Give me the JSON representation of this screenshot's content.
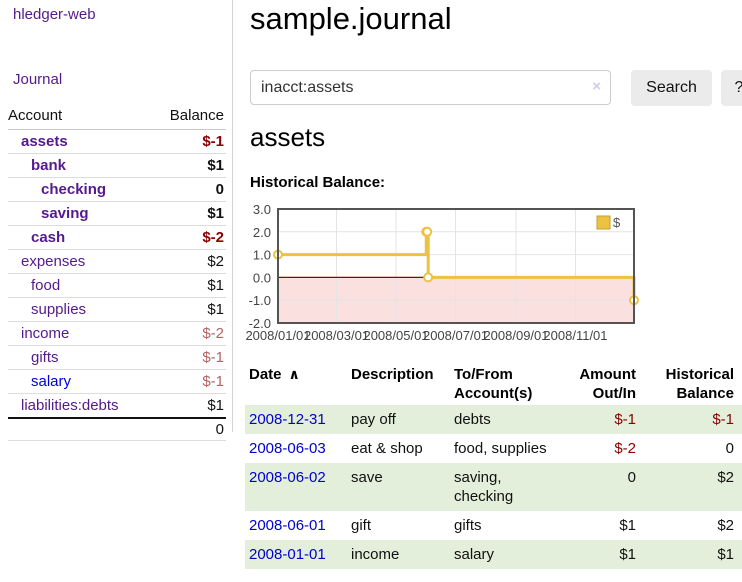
{
  "colors": {
    "link_purple": "#551a8b",
    "link_blue": "#0000dd",
    "negative_strong": "#8b0000",
    "negative_soft": "#b06464",
    "row_green": "#e3efdb",
    "series_gold": "#edc240",
    "chart_negative_region": "#fbe0e0",
    "zero_line": "#8b0000"
  },
  "sidebar": {
    "brand": "hledger-web",
    "nav_journal": "Journal",
    "accounts": {
      "header_account": "Account",
      "header_balance": "Balance",
      "rows": [
        {
          "name": "assets",
          "balance": "$-1",
          "indent": 1,
          "in_query": true
        },
        {
          "name": "bank",
          "balance": "$1",
          "indent": 2,
          "in_query": true
        },
        {
          "name": "checking",
          "balance": "0",
          "indent": 3,
          "in_query": true
        },
        {
          "name": "saving",
          "balance": "$1",
          "indent": 3,
          "in_query": true
        },
        {
          "name": "cash",
          "balance": "$-2",
          "indent": 2,
          "in_query": true
        },
        {
          "name": "expenses",
          "balance": "$2",
          "indent": 1,
          "in_query": false
        },
        {
          "name": "food",
          "balance": "$1",
          "indent": 2,
          "in_query": false
        },
        {
          "name": "supplies",
          "balance": "$1",
          "indent": 2,
          "in_query": false
        },
        {
          "name": "income",
          "balance": "$-2",
          "indent": 1,
          "in_query": false
        },
        {
          "name": "gifts",
          "balance": "$-1",
          "indent": 2,
          "in_query": false
        },
        {
          "name": "salary",
          "balance": "$-1",
          "indent": 2,
          "in_query": false,
          "link_color": "blue"
        },
        {
          "name": "liabilities:debts",
          "balance": "$1",
          "indent": 1,
          "in_query": false
        }
      ],
      "total": "0"
    }
  },
  "header": {
    "title": "sample.journal"
  },
  "search": {
    "value": "inacct:assets",
    "clear_icon": "×",
    "search_button": "Search",
    "help_button": "?"
  },
  "account_page": {
    "heading": "assets",
    "chart_title": "Historical Balance:"
  },
  "chart_data": {
    "type": "line",
    "step": true,
    "title": "Historical Balance:",
    "legend_label": "$",
    "legend_position": "top-right",
    "x_range": [
      "2008-01-01",
      "2008-12-31"
    ],
    "ylim": [
      -2,
      3
    ],
    "yticks": [
      "3.0",
      "2.0",
      "1.0",
      "0.0",
      "-1.0",
      "-2.0"
    ],
    "xticks": [
      "2008/01/01",
      "2008/03/01",
      "2008/05/01",
      "2008/07/01",
      "2008/09/01",
      "2008/11/01"
    ],
    "points": [
      [
        "2008-01-01",
        1
      ],
      [
        "2008-06-01",
        2
      ],
      [
        "2008-06-02",
        2
      ],
      [
        "2008-06-03",
        0
      ],
      [
        "2008-12-31",
        -1
      ]
    ],
    "grid": true,
    "negative_region_shaded": true
  },
  "register": {
    "headers": [
      "Date",
      "Description",
      "To/From Account(s)",
      "Amount Out/In",
      "Historical Balance"
    ],
    "sort_icon": "∧",
    "rows": [
      {
        "date": "2008-12-31",
        "description": "pay off",
        "accounts": "debts",
        "amount": "$-1",
        "balance": "$-1"
      },
      {
        "date": "2008-06-03",
        "description": "eat & shop",
        "accounts": "food, supplies",
        "amount": "$-2",
        "balance": "0"
      },
      {
        "date": "2008-06-02",
        "description": "save",
        "accounts": "saving,\nchecking",
        "amount": "0",
        "balance": "$2"
      },
      {
        "date": "2008-06-01",
        "description": "gift",
        "accounts": "gifts",
        "amount": "$1",
        "balance": "$2"
      },
      {
        "date": "2008-01-01",
        "description": "income",
        "accounts": "salary",
        "amount": "$1",
        "balance": "$1"
      }
    ]
  }
}
